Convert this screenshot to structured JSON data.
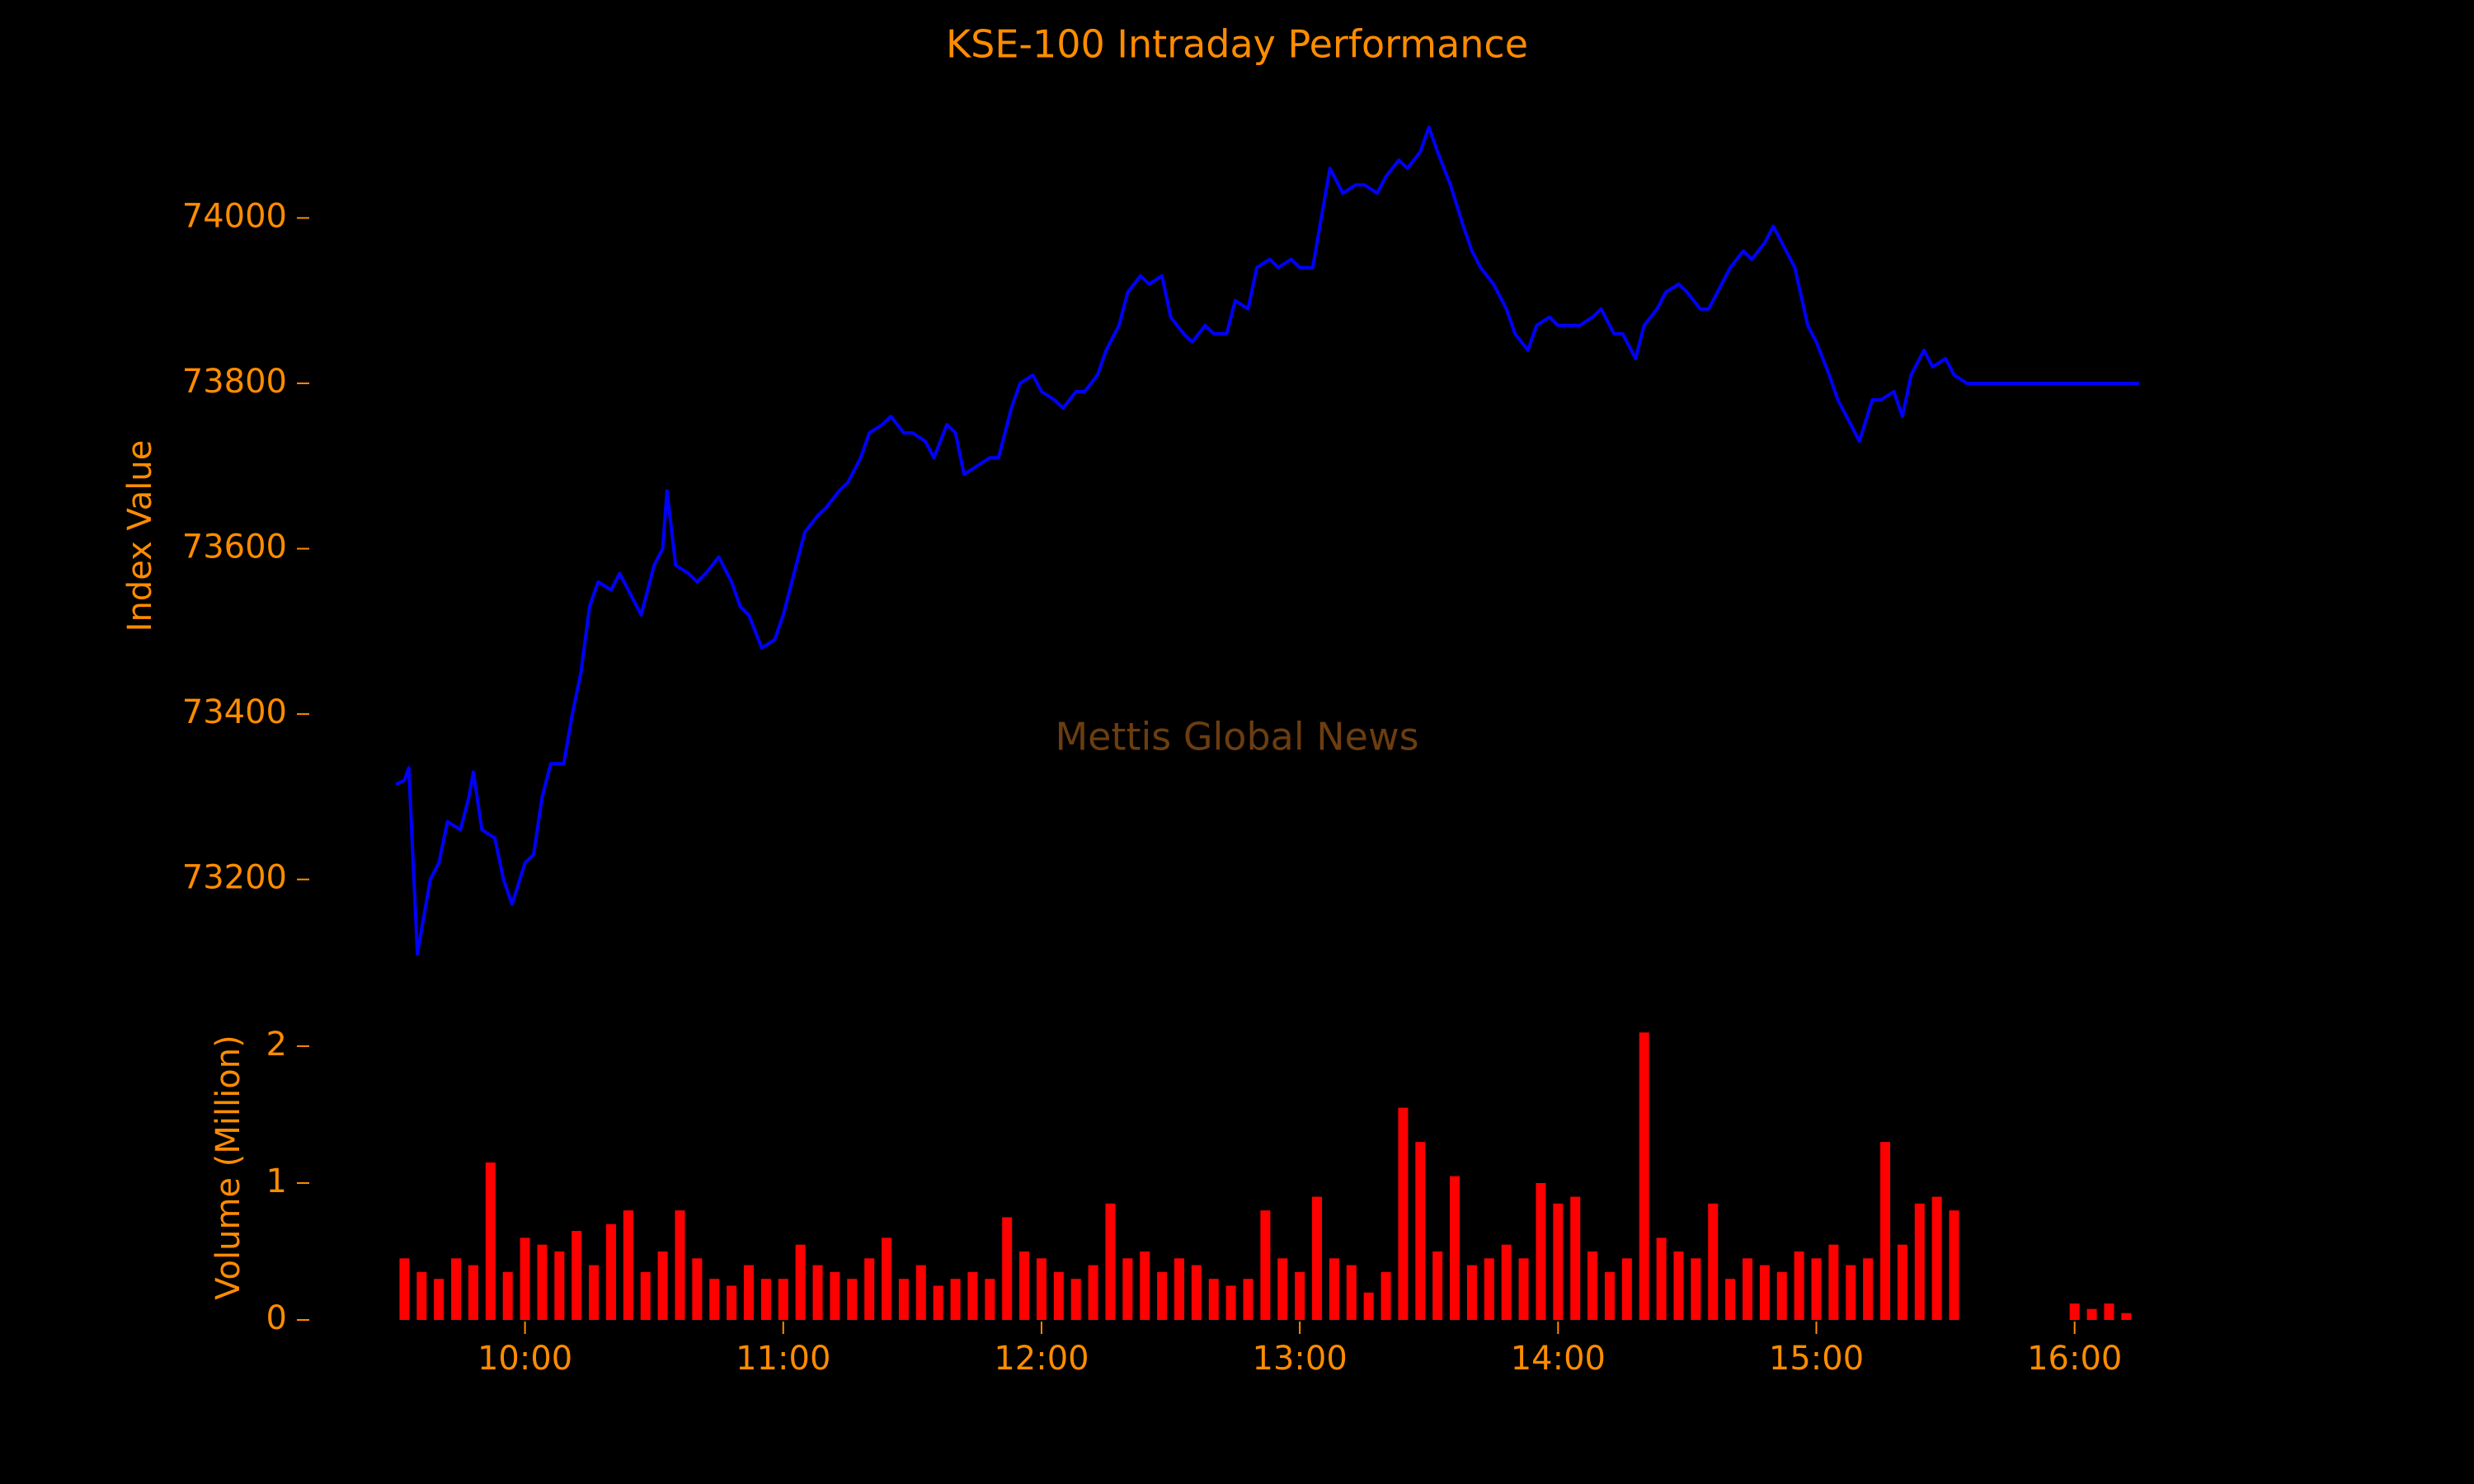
{
  "chart_data": [
    {
      "type": "line",
      "title": "KSE-100 Intraday Performance",
      "ylabel": "Index Value",
      "annotation": "Mettis Global News",
      "color": "#0000ff",
      "x": [
        "09:30",
        "09:32",
        "09:33",
        "09:35",
        "09:38",
        "09:40",
        "09:42",
        "09:45",
        "09:47",
        "09:48",
        "09:50",
        "09:53",
        "09:55",
        "09:57",
        "10:00",
        "10:02",
        "10:04",
        "10:06",
        "10:09",
        "10:11",
        "10:13",
        "10:15",
        "10:17",
        "10:20",
        "10:22",
        "10:25",
        "10:27",
        "10:30",
        "10:32",
        "10:33",
        "10:35",
        "10:38",
        "10:40",
        "10:42",
        "10:45",
        "10:48",
        "10:50",
        "10:52",
        "10:55",
        "10:58",
        "11:00",
        "11:03",
        "11:05",
        "11:08",
        "11:10",
        "11:13",
        "11:15",
        "11:18",
        "11:20",
        "11:23",
        "11:25",
        "11:28",
        "11:30",
        "11:33",
        "11:35",
        "11:38",
        "11:40",
        "11:42",
        "11:45",
        "11:48",
        "11:50",
        "11:53",
        "11:55",
        "11:58",
        "12:00",
        "12:03",
        "12:05",
        "12:08",
        "12:10",
        "12:13",
        "12:15",
        "12:18",
        "12:20",
        "12:23",
        "12:25",
        "12:28",
        "12:30",
        "12:33",
        "12:35",
        "12:38",
        "12:40",
        "12:43",
        "12:45",
        "12:48",
        "12:50",
        "12:53",
        "12:55",
        "12:58",
        "13:00",
        "13:03",
        "13:05",
        "13:07",
        "13:10",
        "13:13",
        "13:15",
        "13:18",
        "13:20",
        "13:23",
        "13:25",
        "13:28",
        "13:30",
        "13:32",
        "13:35",
        "13:38",
        "13:40",
        "13:42",
        "13:45",
        "13:48",
        "13:50",
        "13:53",
        "13:55",
        "13:58",
        "14:00",
        "14:03",
        "14:05",
        "14:08",
        "14:10",
        "14:13",
        "14:15",
        "14:18",
        "14:20",
        "14:23",
        "14:25",
        "14:28",
        "14:30",
        "14:33",
        "14:35",
        "14:38",
        "14:40",
        "14:43",
        "14:45",
        "14:48",
        "14:50",
        "14:53",
        "14:55",
        "14:58",
        "15:00",
        "15:03",
        "15:05",
        "15:08",
        "15:10",
        "15:13",
        "15:15",
        "15:18",
        "15:20",
        "15:22",
        "15:25",
        "15:27",
        "15:30",
        "15:32",
        "15:35",
        "15:40",
        "16:00",
        "16:15"
      ],
      "values": [
        73315,
        73320,
        73335,
        73110,
        73200,
        73220,
        73270,
        73260,
        73300,
        73330,
        73260,
        73250,
        73200,
        73170,
        73220,
        73230,
        73300,
        73340,
        73340,
        73400,
        73450,
        73530,
        73560,
        73550,
        73570,
        73540,
        73520,
        73580,
        73600,
        73670,
        73580,
        73570,
        73560,
        73570,
        73590,
        73560,
        73530,
        73520,
        73480,
        73490,
        73520,
        73580,
        73620,
        73640,
        73650,
        73670,
        73680,
        73710,
        73740,
        73750,
        73760,
        73740,
        73740,
        73730,
        73710,
        73750,
        73740,
        73690,
        73700,
        73710,
        73710,
        73770,
        73800,
        73810,
        73790,
        73780,
        73770,
        73790,
        73790,
        73810,
        73840,
        73870,
        73910,
        73930,
        73920,
        73930,
        73880,
        73860,
        73850,
        73870,
        73860,
        73860,
        73900,
        73890,
        73940,
        73950,
        73940,
        73950,
        73940,
        73940,
        74000,
        74060,
        74030,
        74040,
        74040,
        74030,
        74050,
        74070,
        74060,
        74080,
        74110,
        74080,
        74040,
        73990,
        73960,
        73940,
        73920,
        73890,
        73860,
        73840,
        73870,
        73880,
        73870,
        73870,
        73870,
        73880,
        73890,
        73860,
        73860,
        73830,
        73870,
        73890,
        73910,
        73920,
        73910,
        73890,
        73890,
        73920,
        73940,
        73960,
        73950,
        73970,
        73990,
        73960,
        73940,
        73870,
        73850,
        73810,
        73780,
        73750,
        73730,
        73780,
        73780,
        73790,
        73760,
        73810,
        73840,
        73820,
        73830,
        73810,
        73800,
        73800,
        73800,
        73800
      ],
      "xlim": [
        "09:30",
        "16:15"
      ],
      "ylim": [
        73100,
        74130
      ],
      "yticks": [
        73200,
        73400,
        73600,
        73800,
        74000
      ]
    },
    {
      "type": "bar",
      "ylabel": "Volume (Million)",
      "color": "#ff0000",
      "x": [
        "09:32",
        "09:36",
        "09:40",
        "09:44",
        "09:48",
        "09:52",
        "09:56",
        "10:00",
        "10:04",
        "10:08",
        "10:12",
        "10:16",
        "10:20",
        "10:24",
        "10:28",
        "10:32",
        "10:36",
        "10:40",
        "10:44",
        "10:48",
        "10:52",
        "10:56",
        "11:00",
        "11:04",
        "11:08",
        "11:12",
        "11:16",
        "11:20",
        "11:24",
        "11:28",
        "11:32",
        "11:36",
        "11:40",
        "11:44",
        "11:48",
        "11:52",
        "11:56",
        "12:00",
        "12:04",
        "12:08",
        "12:12",
        "12:16",
        "12:20",
        "12:24",
        "12:28",
        "12:32",
        "12:36",
        "12:40",
        "12:44",
        "12:48",
        "12:52",
        "12:56",
        "13:00",
        "13:04",
        "13:08",
        "13:12",
        "13:16",
        "13:20",
        "13:24",
        "13:28",
        "13:32",
        "13:36",
        "13:40",
        "13:44",
        "13:48",
        "13:52",
        "13:56",
        "14:00",
        "14:04",
        "14:08",
        "14:12",
        "14:16",
        "14:20",
        "14:24",
        "14:28",
        "14:32",
        "14:36",
        "14:40",
        "14:44",
        "14:48",
        "14:52",
        "14:56",
        "15:00",
        "15:04",
        "15:08",
        "15:12",
        "15:16",
        "15:20",
        "15:24",
        "15:28",
        "15:32",
        "16:00",
        "16:04",
        "16:08",
        "16:12"
      ],
      "values": [
        0.45,
        0.35,
        0.3,
        0.45,
        0.4,
        1.15,
        0.35,
        0.6,
        0.55,
        0.5,
        0.65,
        0.4,
        0.7,
        0.8,
        0.35,
        0.5,
        0.8,
        0.45,
        0.3,
        0.25,
        0.4,
        0.3,
        0.3,
        0.55,
        0.4,
        0.35,
        0.3,
        0.45,
        0.6,
        0.3,
        0.4,
        0.25,
        0.3,
        0.35,
        0.3,
        0.75,
        0.5,
        0.45,
        0.35,
        0.3,
        0.4,
        0.85,
        0.45,
        0.5,
        0.35,
        0.45,
        0.4,
        0.3,
        0.25,
        0.3,
        0.8,
        0.45,
        0.35,
        0.9,
        0.45,
        0.4,
        0.2,
        0.35,
        1.55,
        1.3,
        0.5,
        1.05,
        0.4,
        0.45,
        0.55,
        0.45,
        1.0,
        0.85,
        0.9,
        0.5,
        0.35,
        0.45,
        2.1,
        0.6,
        0.5,
        0.45,
        0.85,
        0.3,
        0.45,
        0.4,
        0.35,
        0.5,
        0.45,
        0.55,
        0.4,
        0.45,
        1.3,
        0.55,
        0.85,
        0.9,
        0.8,
        0.12,
        0.08,
        0.12,
        0.05
      ],
      "xlim": [
        "09:30",
        "16:15"
      ],
      "ylim": [
        0,
        2.15
      ],
      "yticks": [
        0,
        1,
        2
      ],
      "xticks": [
        "10:00",
        "11:00",
        "12:00",
        "13:00",
        "14:00",
        "15:00",
        "16:00"
      ]
    }
  ]
}
